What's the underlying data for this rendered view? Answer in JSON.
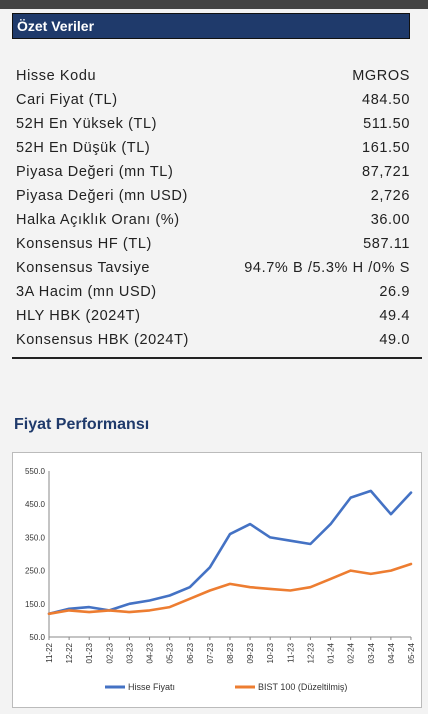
{
  "section_title": "Özet Veriler",
  "rows": [
    {
      "label": "Hisse Kodu",
      "value": "MGROS"
    },
    {
      "label": "Cari Fiyat (TL)",
      "value": "484.50"
    },
    {
      "label": "52H En Yüksek (TL)",
      "value": "511.50"
    },
    {
      "label": "52H En Düşük (TL)",
      "value": "161.50"
    },
    {
      "label": "Piyasa Değeri (mn TL)",
      "value": "87,721"
    },
    {
      "label": "Piyasa Değeri (mn USD)",
      "value": "2,726"
    },
    {
      "label": "Halka Açıklık Oranı (%)",
      "value": "36.00"
    },
    {
      "label": "Konsensus HF (TL)",
      "value": "587.11"
    },
    {
      "label": "Konsensus Tavsiye",
      "value": "94.7% B /5.3% H /0% S"
    },
    {
      "label": "3A Hacim (mn USD)",
      "value": "26.9"
    },
    {
      "label": "HLY HBK (2024T)",
      "value": "49.4"
    },
    {
      "label": "Konsensus HBK (2024T)",
      "value": "49.0"
    }
  ],
  "chart_title": "Fiyat Performansı",
  "colors": {
    "hisse": "#4472c4",
    "bist": "#ed7d31",
    "header_bg": "#1f3a6b"
  },
  "chart_data": {
    "type": "line",
    "x": [
      "11-22",
      "12-22",
      "01-23",
      "02-23",
      "03-23",
      "04-23",
      "05-23",
      "06-23",
      "07-23",
      "08-23",
      "09-23",
      "10-23",
      "11-23",
      "12-23",
      "01-24",
      "02-24",
      "03-24",
      "04-24",
      "05-24"
    ],
    "ylim": [
      50,
      550
    ],
    "yticks": [
      "50.0",
      "150.0",
      "250.0",
      "350.0",
      "450.0",
      "550.0"
    ],
    "legend_position": "bottom",
    "series": [
      {
        "name": "Hisse Fiyatı",
        "color": "#4472c4",
        "values": [
          120,
          135,
          140,
          130,
          150,
          160,
          175,
          200,
          260,
          360,
          390,
          350,
          340,
          330,
          390,
          470,
          490,
          420,
          485
        ]
      },
      {
        "name": "BIST 100 (Düzeltilmiş)",
        "color": "#ed7d31",
        "values": [
          120,
          130,
          125,
          130,
          125,
          130,
          140,
          165,
          190,
          210,
          200,
          195,
          190,
          200,
          225,
          250,
          240,
          250,
          270
        ]
      }
    ]
  }
}
